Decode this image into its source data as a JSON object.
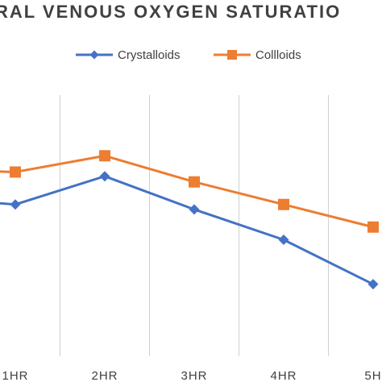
{
  "chart_data": {
    "type": "line",
    "title": "RAL VENOUS OXYGEN SATURATIO",
    "x_categories": [
      "",
      "1HR",
      "2HR",
      "3HR",
      "4HR",
      "5H"
    ],
    "tick_labels": [
      "1HR",
      "2HR",
      "3HR",
      "4HR",
      "5H"
    ],
    "series": [
      {
        "name": "Crystalloids",
        "color": "#4472C4",
        "marker": "diamond",
        "values": [
          72.5,
          71.5,
          75.5,
          70.8,
          66.5,
          60.2
        ]
      },
      {
        "name": "Collloids",
        "color": "#ED7D31",
        "marker": "square",
        "values": [
          76.5,
          76.1,
          78.4,
          74.7,
          71.5,
          68.3
        ]
      }
    ],
    "legend_position": "top-center",
    "grid": "vertical",
    "ylim": [
      50,
      87
    ]
  }
}
